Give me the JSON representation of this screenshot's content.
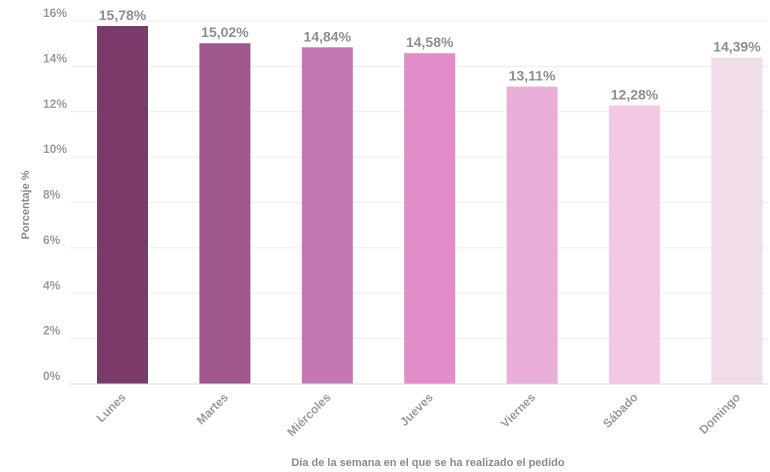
{
  "chart_data": {
    "type": "bar",
    "title": "",
    "xlabel": "Día de la semana en el que se ha realizado el pedido",
    "ylabel": "Porcentaje %",
    "categories": [
      "Lunes",
      "Martes",
      "Miércoles",
      "Jueves",
      "Viernes",
      "Sábado",
      "Domingo"
    ],
    "values": [
      15.78,
      15.02,
      14.84,
      14.58,
      13.11,
      12.28,
      14.39
    ],
    "data_labels": [
      "15,78%",
      "15,02%",
      "14,84%",
      "14,58%",
      "13,11%",
      "12,28%",
      "14,39%"
    ],
    "bar_colors": [
      "#7b3b6a",
      "#9e568c",
      "#c477b0",
      "#e38cca",
      "#e8aed8",
      "#f3c8e6",
      "#f1dcea"
    ],
    "ylim": [
      0,
      16
    ],
    "yticks": [
      0,
      2,
      4,
      6,
      8,
      10,
      12,
      14,
      16
    ],
    "ytick_labels": [
      "0%",
      "2%",
      "4%",
      "6%",
      "8%",
      "10%",
      "12%",
      "14%",
      "16%"
    ],
    "grid": true,
    "legend": "none"
  }
}
